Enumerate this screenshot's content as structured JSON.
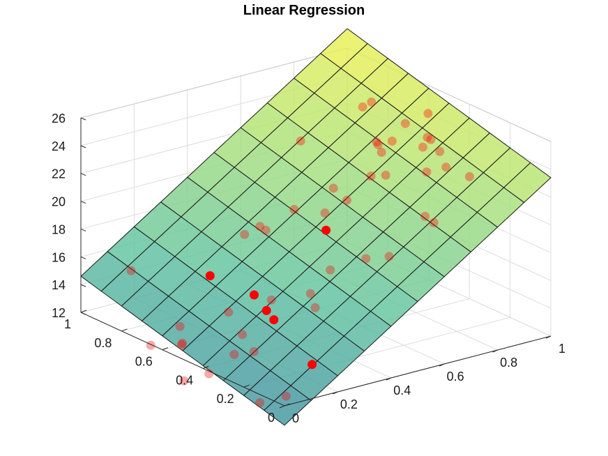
{
  "chart_data": {
    "type": "surface3d",
    "title": "Linear Regression",
    "xlabel": "",
    "ylabel": "",
    "zlabel": "",
    "xlim": [
      0,
      1
    ],
    "ylim": [
      0,
      1
    ],
    "zlim": [
      12,
      26
    ],
    "xticks": [
      "0",
      "0.2",
      "0.4",
      "0.6",
      "0.8",
      "1"
    ],
    "yticks": [
      "0",
      "0.2",
      "0.4",
      "0.6",
      "0.8",
      "1"
    ],
    "zticks": [
      "12",
      "14",
      "16",
      "18",
      "20",
      "22",
      "24",
      "26"
    ],
    "grid": true,
    "plane": {
      "intercept": 10.6,
      "coef_x": 12.8,
      "coef_y": 4.0
    },
    "surface_grid_steps": 10,
    "colormap": [
      "#3e8fa0",
      "#5fc2a0",
      "#a8e07a",
      "#f2f24e"
    ],
    "point_color": "#ff0000",
    "points": [
      [
        0.12,
        0.91,
        15.0
      ],
      [
        0.01,
        0.67,
        11.8
      ],
      [
        0.14,
        0.43,
        12.1
      ],
      [
        0.22,
        0.34,
        14.8
      ],
      [
        0.21,
        0.64,
        16.0
      ],
      [
        0.02,
        0.52,
        10.2
      ],
      [
        0.08,
        0.61,
        11.9
      ],
      [
        0.06,
        0.58,
        12.3
      ],
      [
        0.18,
        0.51,
        14.4
      ],
      [
        0.03,
        0.41,
        11.4
      ],
      [
        0.14,
        0.39,
        13.8
      ],
      [
        0.23,
        0.45,
        15.8
      ],
      [
        0.12,
        0.67,
        12.6
      ],
      [
        0.03,
        0.16,
        11.0
      ],
      [
        0.09,
        0.11,
        11.5
      ],
      [
        0.31,
        0.47,
        14.9
      ],
      [
        0.13,
        0.32,
        13.1
      ],
      [
        0.18,
        0.1,
        13.4
      ],
      [
        0.2,
        0.35,
        15.5
      ],
      [
        0.42,
        0.67,
        18.3
      ],
      [
        0.5,
        0.45,
        19.1
      ],
      [
        0.51,
        0.62,
        19.4
      ],
      [
        0.52,
        0.28,
        18.1
      ],
      [
        0.37,
        0.68,
        17.9
      ],
      [
        0.45,
        0.68,
        17.8
      ],
      [
        0.36,
        0.32,
        15.1
      ],
      [
        0.35,
        0.33,
        16.1
      ],
      [
        0.47,
        0.39,
        16.8
      ],
      [
        0.58,
        0.56,
        19.2
      ],
      [
        0.67,
        0.57,
        19.6
      ],
      [
        0.65,
        0.61,
        20.3
      ],
      [
        0.63,
        0.31,
        17.5
      ],
      [
        0.78,
        0.33,
        19.5
      ],
      [
        0.79,
        0.3,
        19.2
      ],
      [
        0.68,
        0.81,
        22.2
      ],
      [
        0.84,
        0.57,
        23.0
      ],
      [
        0.92,
        0.61,
        23.6
      ],
      [
        0.92,
        0.41,
        21.8
      ],
      [
        0.97,
        0.36,
        21.2
      ],
      [
        0.9,
        0.75,
        24.3
      ],
      [
        0.89,
        0.78,
        23.8
      ],
      [
        0.87,
        0.44,
        21.5
      ],
      [
        0.97,
        0.55,
        22.6
      ],
      [
        0.77,
        0.51,
        21.3
      ],
      [
        0.8,
        0.57,
        22.4
      ],
      [
        0.73,
        0.53,
        21.3
      ],
      [
        0.81,
        0.6,
        22.7
      ],
      [
        0.82,
        0.62,
        22.7
      ],
      [
        0.95,
        0.48,
        22.3
      ],
      [
        0.98,
        0.58,
        22.5
      ],
      [
        0.99,
        0.59,
        24.1
      ],
      [
        0.94,
        0.55,
        22.2
      ]
    ]
  }
}
